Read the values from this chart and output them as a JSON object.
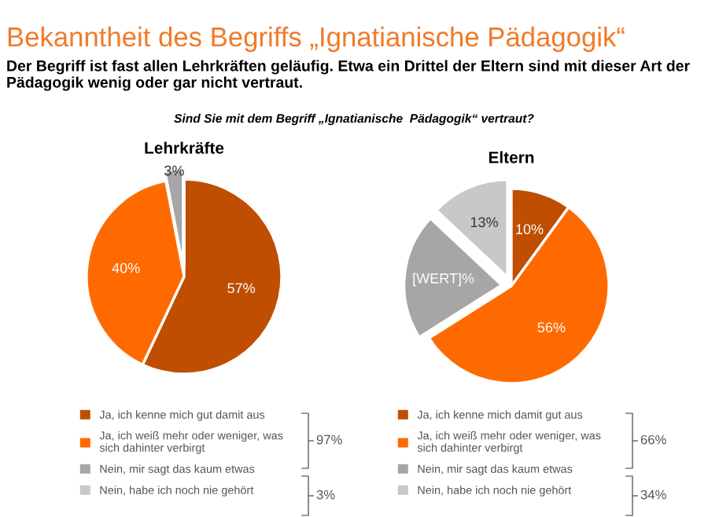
{
  "chart_data": [
    {
      "type": "pie",
      "title": "Lehrkräfte",
      "categories": [
        "Ja, ich kenne mich gut damit aus",
        "Ja, ich weiß mehr oder weniger, was\nsich dahinter verbirgt",
        "Nein, mir sagt das kaum etwas",
        "Nein, habe ich noch nie gehört"
      ],
      "values": [
        57,
        40,
        3,
        0
      ],
      "value_labels": [
        "57%",
        "40%",
        "3%",
        null
      ],
      "colors": [
        "#bf4e00",
        "#ff6a00",
        "#a6a6a6",
        "#c8c8c8"
      ],
      "legend": "bottom",
      "annotations": [
        "Bekanntheit des Begriffs „Ignatianische Pädagogik“",
        "Der Begriff ist fast allen Lehrkräften geläufig. Etwa ein Drittel der Eltern sind mit dieser Art der Pädagogik wenig oder gar nicht vertraut.",
        "Sind Sie mit dem Begriff „Ignatianische  Pädagogik“ vertraut?",
        "97%",
        "3%"
      ]
    },
    {
      "type": "pie",
      "title": "Eltern",
      "categories": [
        "Ja, ich kenne mich damit gut aus",
        "Ja, ich weiß mehr oder weniger, was\nsich dahinter verbirgt",
        "Nein, mir sagt das kaum etwas",
        "Nein, habe ich noch nie gehört"
      ],
      "values": [
        10,
        56,
        21,
        13
      ],
      "value_labels": [
        "10%",
        "56%",
        "[WERT]%",
        "13%"
      ],
      "colors": [
        "#bf4e00",
        "#ff6a00",
        "#a6a6a6",
        "#c8c8c8"
      ],
      "legend": "bottom",
      "annotations": [
        "66%",
        "34%"
      ]
    }
  ]
}
